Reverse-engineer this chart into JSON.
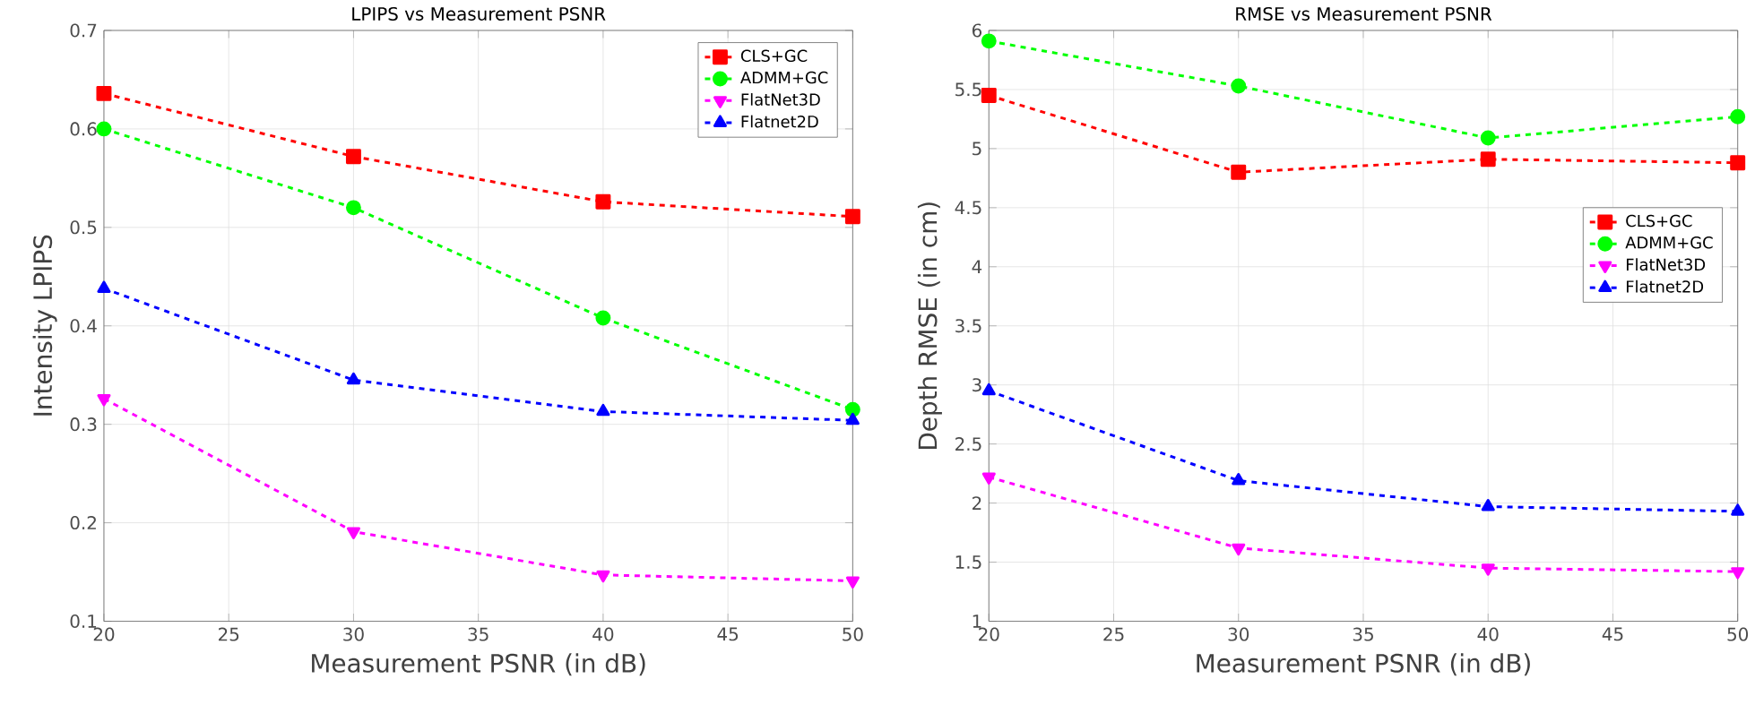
{
  "chart_data": [
    {
      "type": "line",
      "title": "LPIPS vs Measurement PSNR",
      "xlabel": "Measurement PSNR (in dB)",
      "ylabel": "Intensity LPIPS",
      "x": [
        20,
        30,
        40,
        50
      ],
      "xlim": [
        20,
        50
      ],
      "xticks": [
        20,
        25,
        30,
        35,
        40,
        45,
        50
      ],
      "ylim": [
        0.1,
        0.7
      ],
      "yticks": [
        0.1,
        0.2,
        0.3,
        0.4,
        0.5,
        0.6,
        0.7
      ],
      "grid": true,
      "legend": "top right",
      "line_style": "dashed",
      "series": [
        {
          "name": "CLS+GC",
          "color": "#ff0000",
          "marker": "square",
          "values": [
            0.636,
            0.572,
            0.526,
            0.511
          ]
        },
        {
          "name": "ADMM+GC",
          "color": "#00ff00",
          "marker": "circle",
          "values": [
            0.6,
            0.52,
            0.408,
            0.315
          ]
        },
        {
          "name": "FlatNet3D",
          "color": "#ff00ff",
          "marker": "triangle-down",
          "values": [
            0.326,
            0.191,
            0.147,
            0.141
          ]
        },
        {
          "name": "Flatnet2D",
          "color": "#0000ff",
          "marker": "triangle",
          "values": [
            0.438,
            0.345,
            0.313,
            0.304
          ]
        }
      ]
    },
    {
      "type": "line",
      "title": "RMSE vs Measurement PSNR",
      "xlabel": "Measurement PSNR (in dB)",
      "ylabel": "Depth RMSE (in cm)",
      "x": [
        20,
        30,
        40,
        50
      ],
      "xlim": [
        20,
        50
      ],
      "xticks": [
        20,
        25,
        30,
        35,
        40,
        45,
        50
      ],
      "ylim": [
        1,
        6
      ],
      "yticks": [
        1,
        1.5,
        2,
        2.5,
        3,
        3.5,
        4,
        4.5,
        5,
        5.5,
        6
      ],
      "grid": true,
      "legend": "right",
      "line_style": "dashed",
      "series": [
        {
          "name": "CLS+GC",
          "color": "#ff0000",
          "marker": "square",
          "values": [
            5.45,
            4.8,
            4.91,
            4.88
          ]
        },
        {
          "name": "ADMM+GC",
          "color": "#00ff00",
          "marker": "circle",
          "values": [
            5.91,
            5.53,
            5.09,
            5.27
          ]
        },
        {
          "name": "FlatNet3D",
          "color": "#ff00ff",
          "marker": "triangle-down",
          "values": [
            2.22,
            1.62,
            1.45,
            1.42
          ]
        },
        {
          "name": "Flatnet2D",
          "color": "#0000ff",
          "marker": "triangle",
          "values": [
            2.95,
            2.19,
            1.97,
            1.93
          ]
        }
      ]
    }
  ]
}
